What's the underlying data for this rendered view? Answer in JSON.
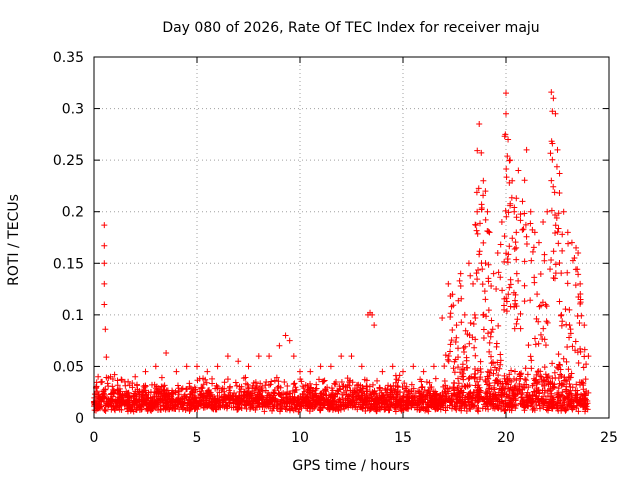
{
  "chart_data": {
    "type": "scatter",
    "title": "Day 080 of 2026, Rate Of TEC Index for receiver maju",
    "xlabel": "GPS time / hours",
    "ylabel": "ROTI / TECUs",
    "xlim": [
      0,
      25
    ],
    "ylim": [
      0,
      0.35
    ],
    "x_ticks": [
      "0",
      "5",
      "10",
      "15",
      "20",
      "25"
    ],
    "y_ticks": [
      "0",
      "0.05",
      "0.1",
      "0.15",
      "0.2",
      "0.25",
      "0.3",
      "0.35"
    ],
    "grid": true,
    "marker": "plus",
    "series": [
      {
        "name": "ROTI",
        "color": "#ff0000",
        "x": [
          0.1,
          0.2,
          0.35,
          0.5,
          0.5,
          0.5,
          0.5,
          0.5,
          0.55,
          0.6,
          0.8,
          1.0,
          1.5,
          2.0,
          2.5,
          3.0,
          3.5,
          4.0,
          4.5,
          5.0,
          5.5,
          6.0,
          6.5,
          7.0,
          7.5,
          8.0,
          8.5,
          9.0,
          9.3,
          9.5,
          9.7,
          10.0,
          10.5,
          11.0,
          11.5,
          12.0,
          12.5,
          13.0,
          13.3,
          13.4,
          13.5,
          13.6,
          14.0,
          14.5,
          15.0,
          15.5,
          16.0,
          16.5,
          16.9,
          17.2,
          17.4,
          17.6,
          17.8,
          18.0,
          18.2,
          18.4,
          18.6,
          18.7,
          18.8,
          18.9,
          19.0,
          19.1,
          19.2,
          19.4,
          19.6,
          19.8,
          20.0,
          20.0,
          20.1,
          20.2,
          20.3,
          20.4,
          20.5,
          20.6,
          20.8,
          21.0,
          21.2,
          21.4,
          21.6,
          21.8,
          22.0,
          22.2,
          22.3,
          22.4,
          22.5,
          22.6,
          22.8,
          23.0,
          23.2,
          23.4,
          23.5,
          23.6,
          23.8,
          24.0
        ],
        "y": [
          0.03,
          0.04,
          0.035,
          0.187,
          0.167,
          0.15,
          0.13,
          0.11,
          0.086,
          0.059,
          0.04,
          0.042,
          0.035,
          0.04,
          0.045,
          0.05,
          0.063,
          0.045,
          0.05,
          0.05,
          0.045,
          0.05,
          0.06,
          0.055,
          0.05,
          0.06,
          0.06,
          0.07,
          0.08,
          0.075,
          0.06,
          0.045,
          0.045,
          0.05,
          0.05,
          0.06,
          0.06,
          0.05,
          0.1,
          0.102,
          0.1,
          0.09,
          0.045,
          0.05,
          0.045,
          0.05,
          0.045,
          0.05,
          0.097,
          0.13,
          0.12,
          0.09,
          0.14,
          0.1,
          0.15,
          0.13,
          0.2,
          0.285,
          0.257,
          0.23,
          0.22,
          0.2,
          0.18,
          0.14,
          0.16,
          0.19,
          0.315,
          0.295,
          0.27,
          0.25,
          0.23,
          0.2,
          0.18,
          0.24,
          0.21,
          0.26,
          0.2,
          0.18,
          0.17,
          0.19,
          0.2,
          0.316,
          0.31,
          0.295,
          0.26,
          0.237,
          0.2,
          0.18,
          0.17,
          0.165,
          0.16,
          0.13,
          0.09,
          0.06
        ]
      }
    ],
    "baseline_band": {
      "description": "dense cluster of low ROTI values",
      "y_range": [
        0,
        0.045
      ]
    }
  }
}
